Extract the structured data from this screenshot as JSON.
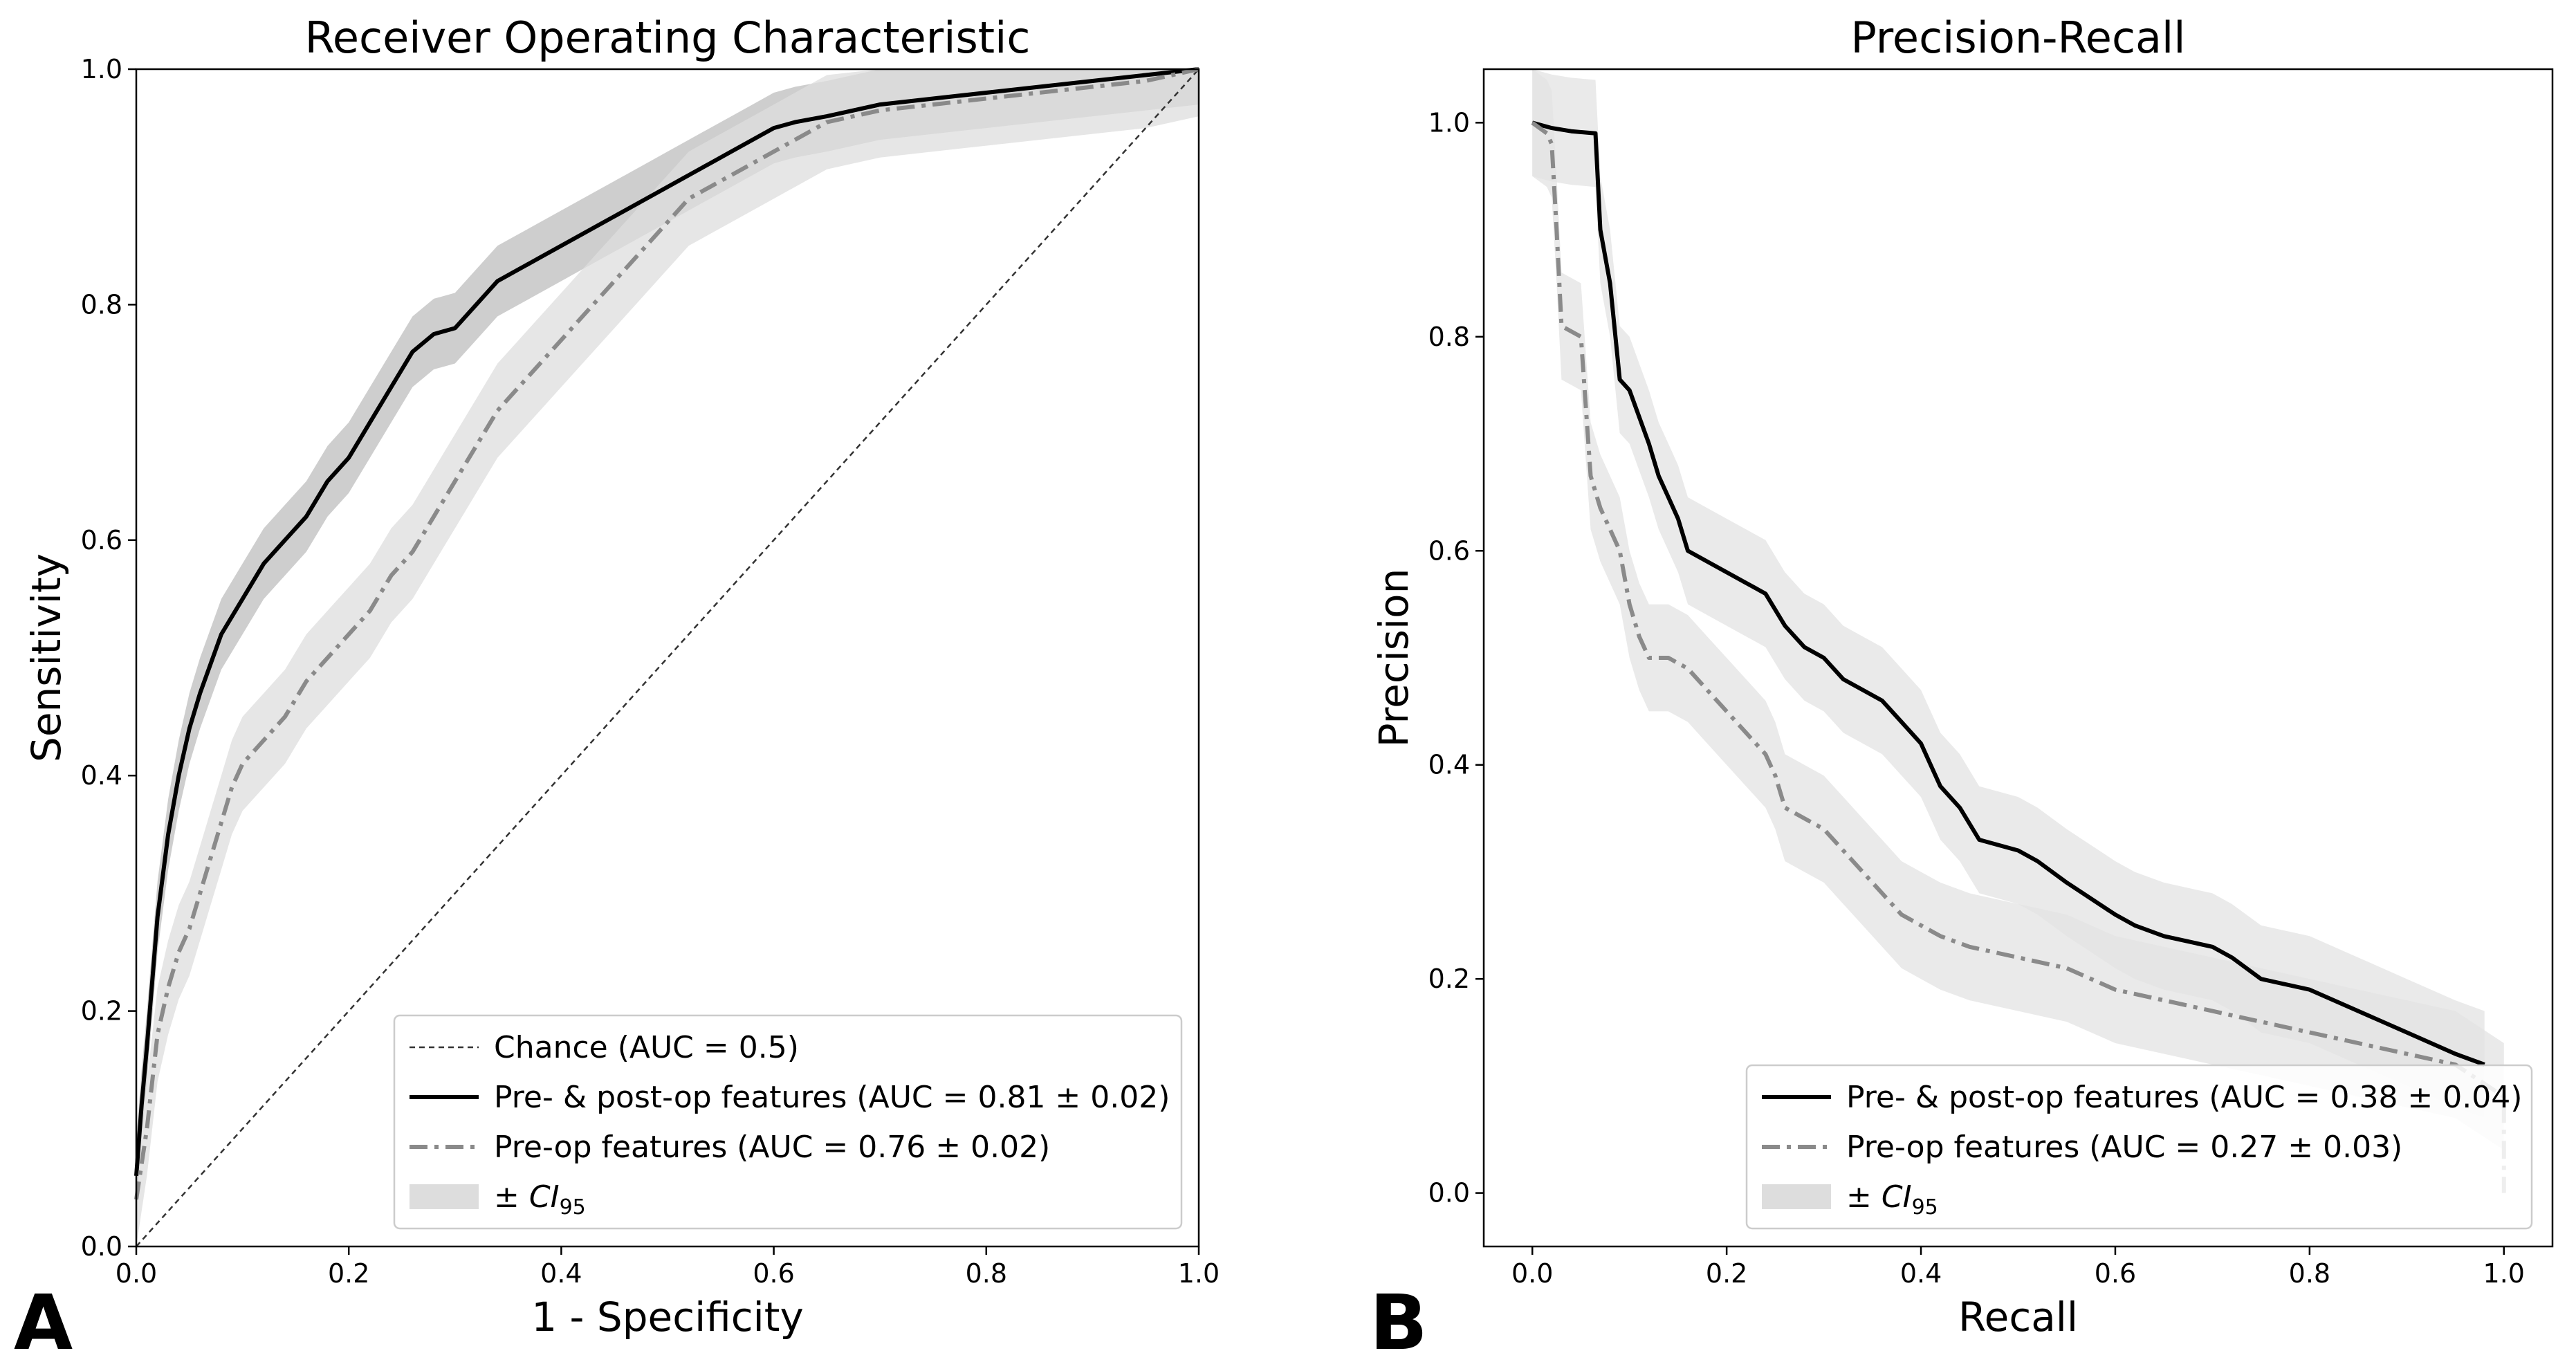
{
  "chart_data": [
    {
      "type": "line",
      "panel_label": "A",
      "title": "Receiver Operating Characteristic",
      "xlabel": "1 - Specificity",
      "ylabel": "Sensitivity",
      "xlim": [
        0,
        1
      ],
      "ylim": [
        0,
        1
      ],
      "xticks": [
        "0.0",
        "0.2",
        "0.4",
        "0.6",
        "0.8",
        "1.0"
      ],
      "yticks": [
        "0.0",
        "0.2",
        "0.4",
        "0.6",
        "0.8",
        "1.0"
      ],
      "xtick_values": [
        0,
        0.2,
        0.4,
        0.6,
        0.8,
        1.0
      ],
      "ytick_values": [
        0,
        0.2,
        0.4,
        0.6,
        0.8,
        1.0
      ],
      "grid": false,
      "legend_position": "lower-right",
      "series": [
        {
          "name": "Chance (AUC = 0.5)",
          "style": "dashed-thin",
          "color": "#333333",
          "x": [
            0,
            1
          ],
          "y": [
            0,
            1
          ]
        },
        {
          "name": "Pre- & post-op features (AUC = 0.81 ± 0.02)",
          "style": "solid",
          "color": "#000000",
          "band_color": "#bdbdbd",
          "band_width": 0.03,
          "x": [
            0,
            0.005,
            0.01,
            0.02,
            0.03,
            0.04,
            0.05,
            0.06,
            0.08,
            0.1,
            0.12,
            0.14,
            0.16,
            0.18,
            0.2,
            0.22,
            0.24,
            0.26,
            0.28,
            0.3,
            0.32,
            0.34,
            0.36,
            0.38,
            0.4,
            0.42,
            0.44,
            0.46,
            0.48,
            0.5,
            0.52,
            0.54,
            0.56,
            0.58,
            0.6,
            0.62,
            0.65,
            0.7,
            0.75,
            0.8,
            0.85,
            0.9,
            0.95,
            1.0
          ],
          "y": [
            0.06,
            0.12,
            0.17,
            0.28,
            0.35,
            0.4,
            0.44,
            0.47,
            0.52,
            0.55,
            0.58,
            0.6,
            0.62,
            0.65,
            0.67,
            0.7,
            0.73,
            0.76,
            0.775,
            0.78,
            0.8,
            0.82,
            0.83,
            0.84,
            0.85,
            0.86,
            0.87,
            0.88,
            0.89,
            0.9,
            0.91,
            0.92,
            0.93,
            0.94,
            0.95,
            0.955,
            0.96,
            0.97,
            0.975,
            0.98,
            0.985,
            0.99,
            0.995,
            1.0
          ]
        },
        {
          "name": "Pre-op features (AUC = 0.76 ± 0.02)",
          "style": "dashdot",
          "color": "#8a8a8a",
          "band_color": "#dddddd",
          "band_width": 0.04,
          "x": [
            0,
            0.01,
            0.02,
            0.03,
            0.04,
            0.05,
            0.06,
            0.07,
            0.08,
            0.09,
            0.1,
            0.12,
            0.14,
            0.16,
            0.18,
            0.2,
            0.22,
            0.24,
            0.26,
            0.28,
            0.3,
            0.32,
            0.34,
            0.36,
            0.38,
            0.4,
            0.42,
            0.44,
            0.46,
            0.48,
            0.5,
            0.52,
            0.54,
            0.56,
            0.58,
            0.6,
            0.62,
            0.65,
            0.7,
            0.75,
            0.8,
            0.85,
            0.9,
            0.95,
            1.0
          ],
          "y": [
            0.04,
            0.1,
            0.18,
            0.22,
            0.25,
            0.27,
            0.3,
            0.33,
            0.36,
            0.39,
            0.41,
            0.43,
            0.45,
            0.48,
            0.5,
            0.52,
            0.54,
            0.57,
            0.59,
            0.62,
            0.65,
            0.68,
            0.71,
            0.73,
            0.75,
            0.77,
            0.79,
            0.81,
            0.83,
            0.85,
            0.87,
            0.89,
            0.9,
            0.91,
            0.92,
            0.93,
            0.94,
            0.955,
            0.965,
            0.97,
            0.975,
            0.98,
            0.985,
            0.99,
            1.0
          ]
        }
      ],
      "legend": [
        {
          "label": "Chance (AUC = 0.5)",
          "kind": "dashed-thin",
          "color": "#333333"
        },
        {
          "label": "Pre- & post-op features (AUC = 0.81 ± 0.02)",
          "kind": "solid",
          "color": "#000000"
        },
        {
          "label": "Pre-op features (AUC = 0.76 ± 0.02)",
          "kind": "dashdot",
          "color": "#8a8a8a"
        },
        {
          "label": "± CI95",
          "kind": "patch",
          "color": "#dddddd",
          "label_prefix": "± ",
          "label_main": "CI",
          "label_sub": "95"
        }
      ]
    },
    {
      "type": "line",
      "panel_label": "B",
      "title": "Precision-Recall",
      "xlabel": "Recall",
      "ylabel": "Precision",
      "xlim": [
        -0.05,
        1.05
      ],
      "ylim": [
        -0.05,
        1.05
      ],
      "xticks": [
        "0.0",
        "0.2",
        "0.4",
        "0.6",
        "0.8",
        "1.0"
      ],
      "yticks": [
        "0.0",
        "0.2",
        "0.4",
        "0.6",
        "0.8",
        "1.0"
      ],
      "xtick_values": [
        0,
        0.2,
        0.4,
        0.6,
        0.8,
        1.0
      ],
      "ytick_values": [
        0,
        0.2,
        0.4,
        0.6,
        0.8,
        1.0
      ],
      "grid": false,
      "legend_position": "lower-right",
      "series": [
        {
          "name": "Pre- & post-op features (AUC = 0.38 ± 0.04)",
          "style": "solid",
          "color": "#000000",
          "band_color": "#e3e3e3",
          "band_width": 0.05,
          "x": [
            0,
            0.02,
            0.04,
            0.065,
            0.07,
            0.08,
            0.09,
            0.1,
            0.12,
            0.13,
            0.14,
            0.15,
            0.16,
            0.18,
            0.2,
            0.22,
            0.24,
            0.26,
            0.28,
            0.3,
            0.32,
            0.34,
            0.36,
            0.38,
            0.4,
            0.42,
            0.44,
            0.46,
            0.5,
            0.52,
            0.55,
            0.6,
            0.62,
            0.65,
            0.7,
            0.72,
            0.75,
            0.8,
            0.85,
            0.9,
            0.95,
            0.98
          ],
          "y": [
            1.0,
            0.995,
            0.992,
            0.99,
            0.9,
            0.85,
            0.76,
            0.75,
            0.7,
            0.67,
            0.65,
            0.63,
            0.6,
            0.59,
            0.58,
            0.57,
            0.56,
            0.53,
            0.51,
            0.5,
            0.48,
            0.47,
            0.46,
            0.44,
            0.42,
            0.38,
            0.36,
            0.33,
            0.32,
            0.31,
            0.29,
            0.26,
            0.25,
            0.24,
            0.23,
            0.22,
            0.2,
            0.19,
            0.17,
            0.15,
            0.13,
            0.12
          ]
        },
        {
          "name": "Pre-op features (AUC = 0.27 ± 0.03)",
          "style": "dashdot",
          "color": "#8a8a8a",
          "band_color": "#e3e3e3",
          "band_width": 0.05,
          "x": [
            0,
            0.015,
            0.02,
            0.025,
            0.03,
            0.05,
            0.06,
            0.07,
            0.08,
            0.09,
            0.1,
            0.11,
            0.12,
            0.14,
            0.16,
            0.18,
            0.2,
            0.22,
            0.24,
            0.25,
            0.26,
            0.28,
            0.3,
            0.32,
            0.34,
            0.36,
            0.38,
            0.4,
            0.42,
            0.45,
            0.5,
            0.55,
            0.6,
            0.65,
            0.7,
            0.75,
            0.8,
            0.85,
            0.9,
            0.95,
            1.0,
            1.0
          ],
          "y": [
            1.0,
            0.99,
            0.98,
            0.9,
            0.81,
            0.8,
            0.67,
            0.64,
            0.62,
            0.6,
            0.55,
            0.52,
            0.5,
            0.5,
            0.49,
            0.47,
            0.45,
            0.43,
            0.41,
            0.39,
            0.36,
            0.35,
            0.34,
            0.32,
            0.3,
            0.28,
            0.26,
            0.25,
            0.24,
            0.23,
            0.22,
            0.21,
            0.19,
            0.18,
            0.17,
            0.16,
            0.15,
            0.14,
            0.13,
            0.12,
            0.09,
            0.0
          ]
        }
      ],
      "legend": [
        {
          "label": "Pre- & post-op features (AUC = 0.38 ± 0.04)",
          "kind": "solid",
          "color": "#000000"
        },
        {
          "label": "Pre-op features (AUC = 0.27 ± 0.03)",
          "kind": "dashdot",
          "color": "#8a8a8a"
        },
        {
          "label": "± CI95",
          "kind": "patch",
          "color": "#dddddd",
          "label_prefix": "± ",
          "label_main": "CI",
          "label_sub": "95"
        }
      ]
    }
  ]
}
